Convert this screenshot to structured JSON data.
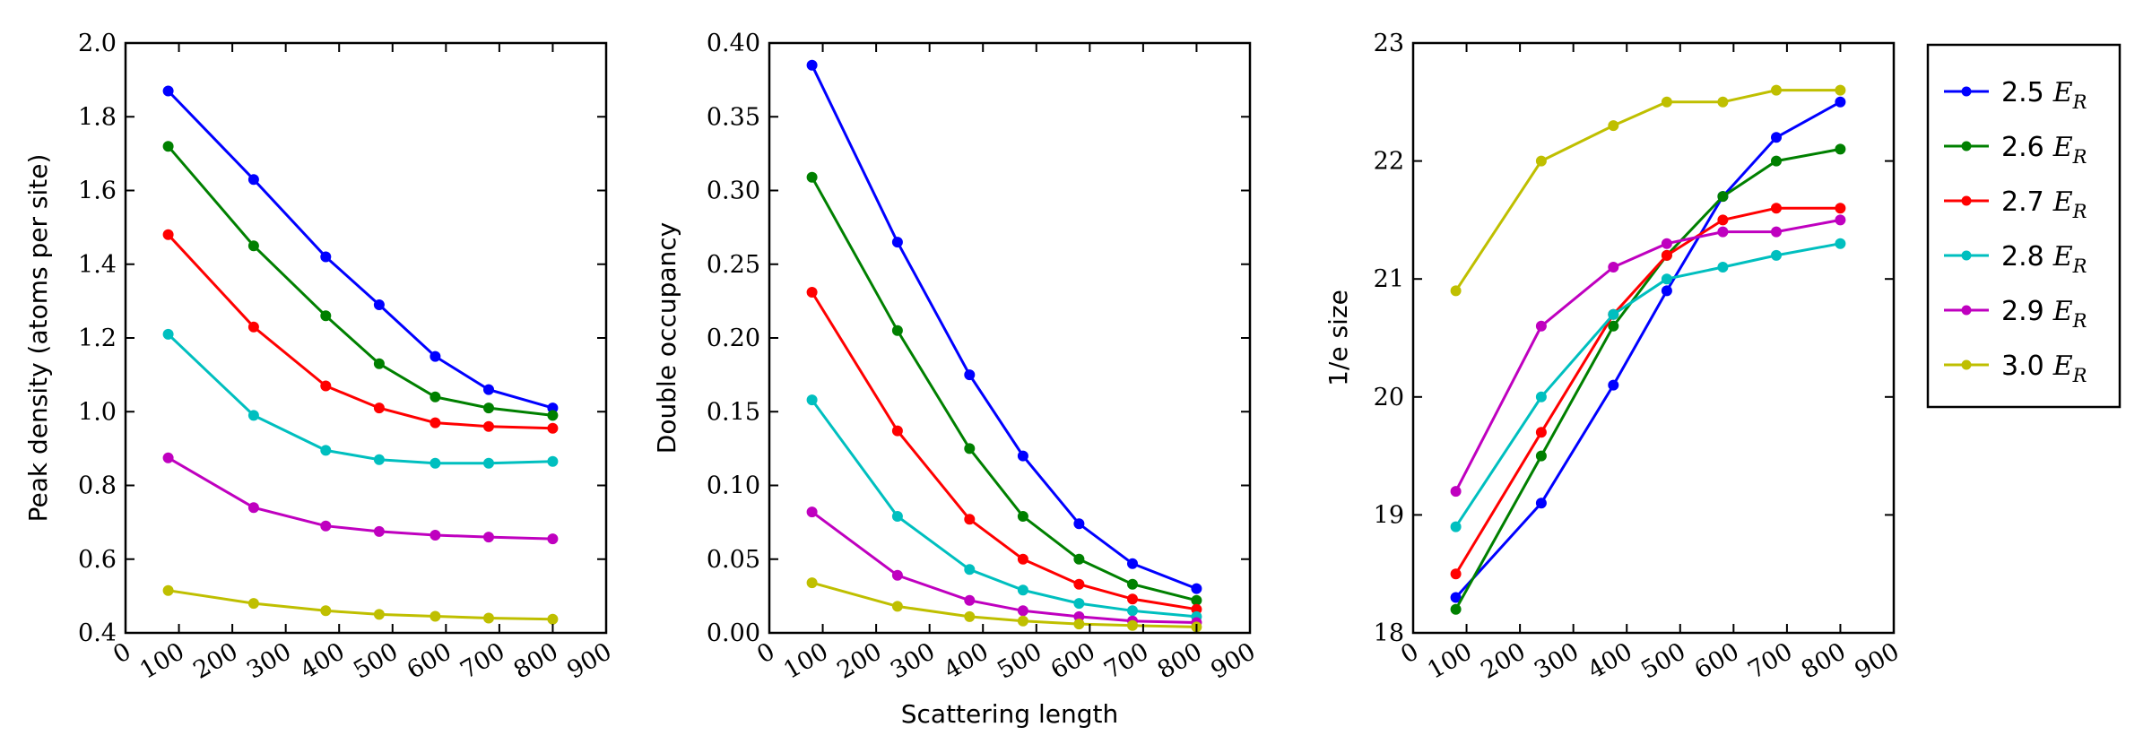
{
  "chart_data": [
    {
      "type": "line",
      "title": "",
      "xlabel": "",
      "ylabel": "Peak density (atoms per site)",
      "xlim": [
        0,
        900
      ],
      "ylim": [
        0.4,
        2.0
      ],
      "xticks": [
        0,
        100,
        200,
        300,
        400,
        500,
        600,
        700,
        800,
        900
      ],
      "yticks": [
        0.4,
        0.6,
        0.8,
        1.0,
        1.2,
        1.4,
        1.6,
        1.8,
        2.0
      ],
      "ytick_labels": [
        "0.4",
        "0.6",
        "0.8",
        "1.0",
        "1.2",
        "1.4",
        "1.6",
        "1.8",
        "2.0"
      ],
      "x": [
        80,
        240,
        375,
        475,
        580,
        680,
        800
      ],
      "series": [
        {
          "name": "2.5 E_R",
          "values": [
            1.87,
            1.63,
            1.42,
            1.29,
            1.15,
            1.06,
            1.01
          ]
        },
        {
          "name": "2.6 E_R",
          "values": [
            1.72,
            1.45,
            1.26,
            1.13,
            1.04,
            1.01,
            0.99
          ]
        },
        {
          "name": "2.7 E_R",
          "values": [
            1.48,
            1.23,
            1.07,
            1.01,
            0.97,
            0.96,
            0.955
          ]
        },
        {
          "name": "2.8 E_R",
          "values": [
            1.21,
            0.99,
            0.895,
            0.87,
            0.86,
            0.86,
            0.865
          ]
        },
        {
          "name": "2.9 E_R",
          "values": [
            0.875,
            0.74,
            0.69,
            0.675,
            0.665,
            0.66,
            0.655
          ]
        },
        {
          "name": "3.0 E_R",
          "values": [
            0.515,
            0.48,
            0.46,
            0.45,
            0.445,
            0.44,
            0.437
          ]
        }
      ]
    },
    {
      "type": "line",
      "title": "",
      "xlabel": "Scattering length",
      "ylabel": "Double occupancy",
      "xlim": [
        0,
        900
      ],
      "ylim": [
        0.0,
        0.4
      ],
      "xticks": [
        0,
        100,
        200,
        300,
        400,
        500,
        600,
        700,
        800,
        900
      ],
      "yticks": [
        0.0,
        0.05,
        0.1,
        0.15,
        0.2,
        0.25,
        0.3,
        0.35,
        0.4
      ],
      "ytick_labels": [
        "0.00",
        "0.05",
        "0.10",
        "0.15",
        "0.20",
        "0.25",
        "0.30",
        "0.35",
        "0.40"
      ],
      "x": [
        80,
        240,
        375,
        475,
        580,
        680,
        800
      ],
      "series": [
        {
          "name": "2.5 E_R",
          "values": [
            0.385,
            0.265,
            0.175,
            0.12,
            0.074,
            0.047,
            0.03
          ]
        },
        {
          "name": "2.6 E_R",
          "values": [
            0.309,
            0.205,
            0.125,
            0.079,
            0.05,
            0.033,
            0.022
          ]
        },
        {
          "name": "2.7 E_R",
          "values": [
            0.231,
            0.137,
            0.077,
            0.05,
            0.033,
            0.023,
            0.016
          ]
        },
        {
          "name": "2.8 E_R",
          "values": [
            0.158,
            0.079,
            0.043,
            0.029,
            0.02,
            0.015,
            0.011
          ]
        },
        {
          "name": "2.9 E_R",
          "values": [
            0.082,
            0.039,
            0.022,
            0.015,
            0.011,
            0.008,
            0.007
          ]
        },
        {
          "name": "3.0 E_R",
          "values": [
            0.034,
            0.018,
            0.011,
            0.008,
            0.006,
            0.005,
            0.004
          ]
        }
      ]
    },
    {
      "type": "line",
      "title": "",
      "xlabel": "",
      "ylabel": "1/e size",
      "xlim": [
        0,
        900
      ],
      "ylim": [
        18,
        23
      ],
      "xticks": [
        0,
        100,
        200,
        300,
        400,
        500,
        600,
        700,
        800,
        900
      ],
      "yticks": [
        18,
        19,
        20,
        21,
        22,
        23
      ],
      "ytick_labels": [
        "18",
        "19",
        "20",
        "21",
        "22",
        "23"
      ],
      "x": [
        80,
        240,
        375,
        475,
        580,
        680,
        800
      ],
      "series": [
        {
          "name": "2.5 E_R",
          "values": [
            18.3,
            19.1,
            20.1,
            20.9,
            21.7,
            22.2,
            22.5
          ]
        },
        {
          "name": "2.6 E_R",
          "values": [
            18.2,
            19.5,
            20.6,
            21.2,
            21.7,
            22.0,
            22.1
          ]
        },
        {
          "name": "2.7 E_R",
          "values": [
            18.5,
            19.7,
            20.7,
            21.2,
            21.5,
            21.6,
            21.6
          ]
        },
        {
          "name": "2.8 E_R",
          "values": [
            18.9,
            20.0,
            20.7,
            21.0,
            21.1,
            21.2,
            21.3
          ]
        },
        {
          "name": "2.9 E_R",
          "values": [
            19.2,
            20.6,
            21.1,
            21.3,
            21.4,
            21.4,
            21.5
          ]
        },
        {
          "name": "3.0 E_R",
          "values": [
            20.9,
            22.0,
            22.3,
            22.5,
            22.5,
            22.6,
            22.6
          ]
        }
      ]
    }
  ],
  "legend": {
    "placement": "right",
    "entries": [
      {
        "number": "2.5",
        "symbol": "E",
        "subscript": "R",
        "color": "#0000ff"
      },
      {
        "number": "2.6",
        "symbol": "E",
        "subscript": "R",
        "color": "#008000"
      },
      {
        "number": "2.7",
        "symbol": "E",
        "subscript": "R",
        "color": "#ff0000"
      },
      {
        "number": "2.8",
        "symbol": "E",
        "subscript": "R",
        "color": "#00bfbf"
      },
      {
        "number": "2.9",
        "symbol": "E",
        "subscript": "R",
        "color": "#bf00bf"
      },
      {
        "number": "3.0",
        "symbol": "E",
        "subscript": "R",
        "color": "#bfbf00"
      }
    ]
  },
  "series_colors": [
    "#0000ff",
    "#008000",
    "#ff0000",
    "#00bfbf",
    "#bf00bf",
    "#bfbf00"
  ]
}
